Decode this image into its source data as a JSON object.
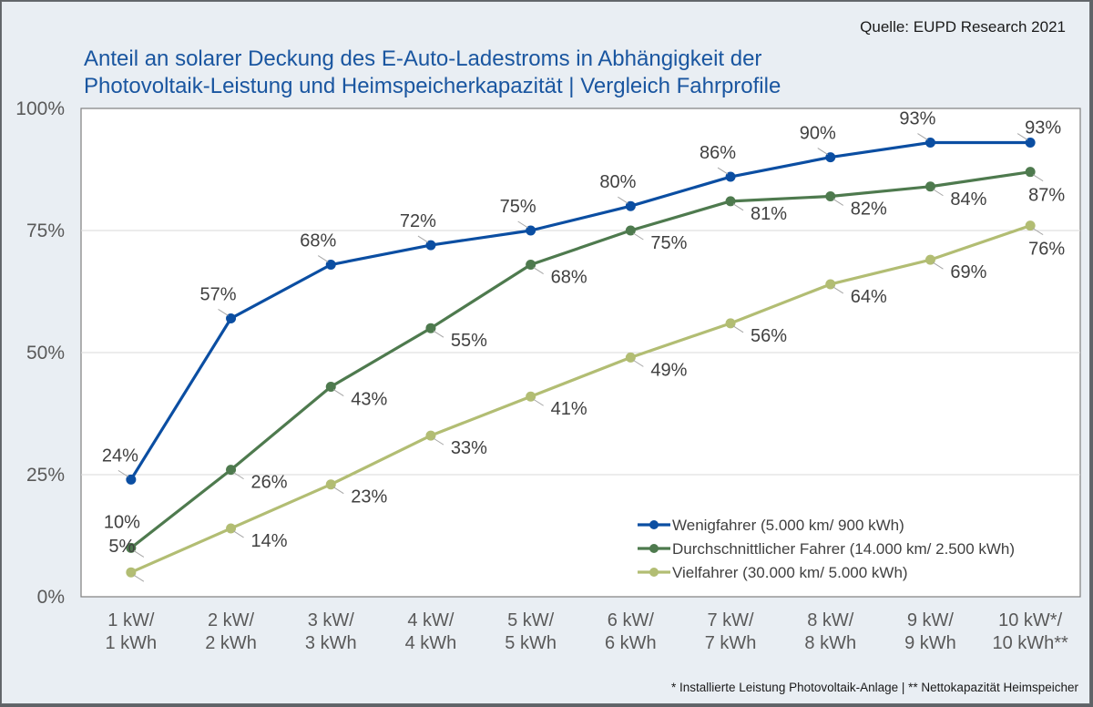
{
  "source": "Quelle: EUPD Research 2021",
  "title_lines": [
    "Anteil an solarer Deckung des E-Auto-Ladestroms in Abhängigkeit der",
    "Photovoltaik-Leistung und Heimspeicherkapazität | Vergleich Fahrprofile"
  ],
  "footnote": "* Installierte Leistung Photovoltaik-Anlage | ** Nettokapazität Heimspeicher",
  "chart_data": {
    "type": "line",
    "title": "Anteil an solarer Deckung des E-Auto-Ladestroms in Abhängigkeit der Photovoltaik-Leistung und Heimspeicherkapazität | Vergleich Fahrprofile",
    "xlabel": "",
    "ylabel": "",
    "categories": [
      [
        "1 kW/",
        "1 kWh"
      ],
      [
        "2 kW/",
        "2 kWh"
      ],
      [
        "3 kW/",
        "3 kWh"
      ],
      [
        "4 kW/",
        "4 kWh"
      ],
      [
        "5 kW/",
        "5 kWh"
      ],
      [
        "6 kW/",
        "6 kWh"
      ],
      [
        "7 kW/",
        "7 kWh"
      ],
      [
        "8 kW/",
        "8 kWh"
      ],
      [
        "9 kW/",
        "9 kWh"
      ],
      [
        "10 kW*/",
        "10 kWh**"
      ]
    ],
    "ylim": [
      0,
      100
    ],
    "yticks": [
      0,
      25,
      50,
      75,
      100
    ],
    "ytick_labels": [
      "0%",
      "25%",
      "50%",
      "75%",
      "100%"
    ],
    "grid": true,
    "legend_position": "bottom-right",
    "series": [
      {
        "name": "Wenigfahrer (5.000 km/ 900 kWh)",
        "color": "#0b4ea2",
        "values": [
          24,
          57,
          68,
          72,
          75,
          80,
          86,
          90,
          93,
          93
        ],
        "labels": [
          "24%",
          "57%",
          "68%",
          "72%",
          "75%",
          "80%",
          "86%",
          "90%",
          "93%",
          "93%"
        ],
        "label_position": "above"
      },
      {
        "name": "Durchschnittlicher Fahrer (14.000 km/ 2.500 kWh)",
        "color": "#4e7a4e",
        "values": [
          10,
          26,
          43,
          55,
          68,
          75,
          81,
          82,
          84,
          87
        ],
        "labels": [
          "10%",
          "26%",
          "43%",
          "55%",
          "68%",
          "75%",
          "81%",
          "82%",
          "84%",
          "87%"
        ],
        "label_position": "below-right"
      },
      {
        "name": "Vielfahrer (30.000 km/ 5.000 kWh)",
        "color": "#b2bd73",
        "values": [
          5,
          14,
          23,
          33,
          41,
          49,
          56,
          64,
          69,
          76
        ],
        "labels": [
          "5%",
          "14%",
          "23%",
          "33%",
          "41%",
          "49%",
          "56%",
          "64%",
          "69%",
          "76%"
        ],
        "label_position": "below-right"
      }
    ]
  }
}
